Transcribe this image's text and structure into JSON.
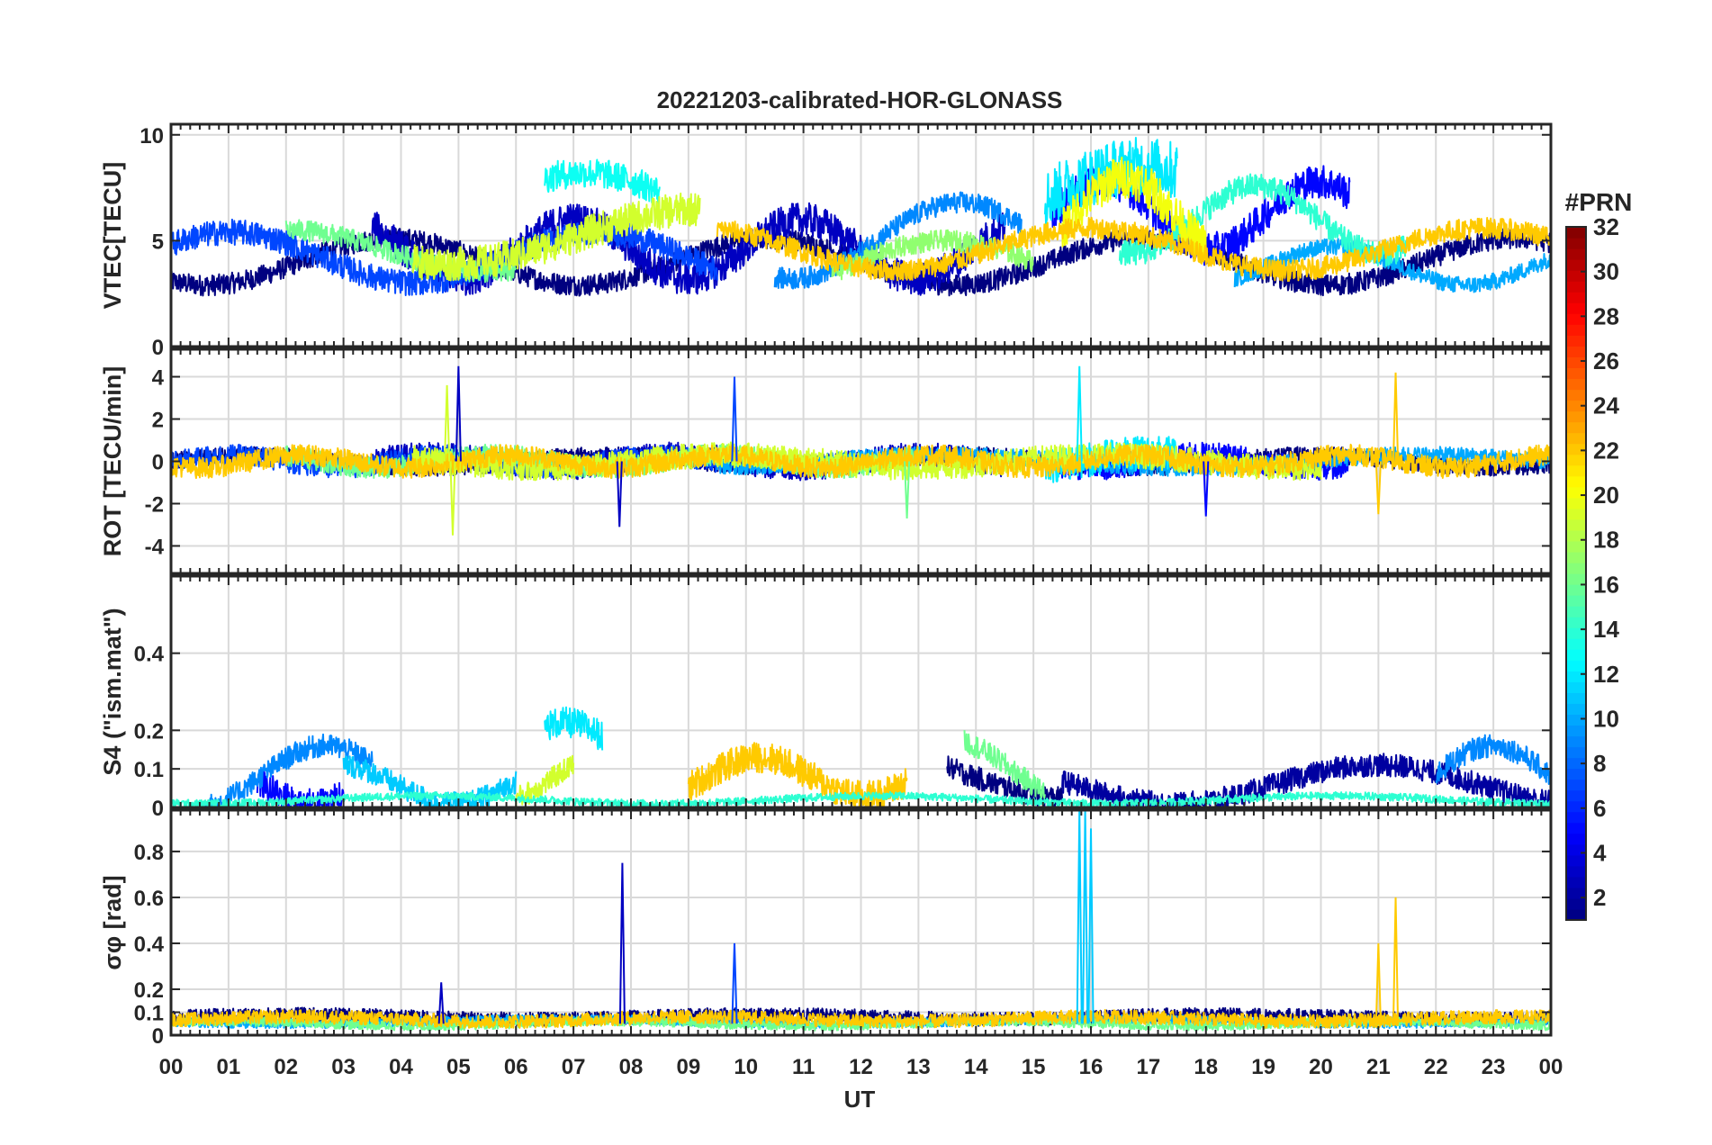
{
  "chart_data": {
    "type": "line",
    "title": "20221203-calibrated-HOR-GLONASS",
    "xlabel": "UT",
    "x_tick_labels": [
      "00",
      "01",
      "02",
      "03",
      "04",
      "05",
      "06",
      "07",
      "08",
      "09",
      "10",
      "11",
      "12",
      "13",
      "14",
      "15",
      "16",
      "17",
      "18",
      "19",
      "20",
      "21",
      "22",
      "23",
      "00"
    ],
    "xlim": [
      0,
      24
    ],
    "colorbar": {
      "label": "#PRN",
      "range": [
        1,
        32
      ],
      "tick_labels": [
        "2",
        "4",
        "6",
        "8",
        "10",
        "12",
        "14",
        "16",
        "18",
        "20",
        "22",
        "24",
        "26",
        "28",
        "30",
        "32"
      ],
      "colormap": "jet"
    },
    "panels": [
      {
        "ylabel": "VTEC[TECU]",
        "ylim": [
          0,
          10.5
        ],
        "y_ticks": [
          0,
          5,
          10
        ],
        "y_tick_labels": [
          "0",
          "5",
          "10"
        ],
        "series": [
          {
            "prn": 1,
            "x_start": 0.0,
            "x_end": 24.0,
            "base": 4.0,
            "amp": 1.1,
            "noise": 0.5
          },
          {
            "prn": 3,
            "x_start": 3.5,
            "x_end": 14.5,
            "base": 4.6,
            "amp": 1.4,
            "noise": 0.8
          },
          {
            "prn": 5,
            "x_start": 15.3,
            "x_end": 20.5,
            "base": 6.2,
            "amp": 1.6,
            "noise": 0.8
          },
          {
            "prn": 7,
            "x_start": 0.0,
            "x_end": 9.5,
            "base": 4.2,
            "amp": 1.2,
            "noise": 0.6
          },
          {
            "prn": 9,
            "x_start": 10.5,
            "x_end": 14.8,
            "base": 5.0,
            "amp": 1.8,
            "noise": 0.5
          },
          {
            "prn": 10,
            "x_start": 18.5,
            "x_end": 24.0,
            "base": 3.8,
            "amp": 0.9,
            "noise": 0.4
          },
          {
            "prn": 12,
            "x_start": 15.2,
            "x_end": 17.5,
            "base": 6.0,
            "amp": 2.5,
            "noise": 1.4
          },
          {
            "prn": 13,
            "x_start": 6.5,
            "x_end": 8.5,
            "base": 6.8,
            "amp": 1.4,
            "noise": 0.7
          },
          {
            "prn": 14,
            "x_start": 16.5,
            "x_end": 21.5,
            "base": 6.0,
            "amp": 1.6,
            "noise": 0.6
          },
          {
            "prn": 16,
            "x_start": 2.0,
            "x_end": 6.0,
            "base": 4.5,
            "amp": 1.0,
            "noise": 0.5
          },
          {
            "prn": 17,
            "x_start": 11.5,
            "x_end": 15.0,
            "base": 3.5,
            "amp": 1.5,
            "noise": 0.5
          },
          {
            "prn": 19,
            "x_start": 4.2,
            "x_end": 9.2,
            "base": 5.2,
            "amp": 1.3,
            "noise": 0.8
          },
          {
            "prn": 20,
            "x_start": 15.5,
            "x_end": 18.0,
            "base": 6.2,
            "amp": 1.8,
            "noise": 1.0
          },
          {
            "prn": 22,
            "x_start": 9.5,
            "x_end": 24.0,
            "base": 4.6,
            "amp": 1.0,
            "noise": 0.5
          }
        ]
      },
      {
        "ylabel": "ROT [TECU/min]",
        "ylim": [
          -5.3,
          5.3
        ],
        "y_ticks": [
          -4,
          -2,
          0,
          2,
          4
        ],
        "y_tick_labels": [
          "-4",
          "-2",
          "0",
          "2",
          "4"
        ],
        "series": [
          {
            "prn": 1,
            "x_start": 0.0,
            "x_end": 24.0,
            "base": 0,
            "amp": 0.3,
            "noise": 0.4
          },
          {
            "prn": 3,
            "x_start": 3.5,
            "x_end": 14.5,
            "base": 0,
            "amp": 0.3,
            "noise": 0.6
          },
          {
            "prn": 5,
            "x_start": 15.3,
            "x_end": 20.5,
            "base": 0,
            "amp": 0.3,
            "noise": 0.6
          },
          {
            "prn": 7,
            "x_start": 0.0,
            "x_end": 9.5,
            "base": 0,
            "amp": 0.3,
            "noise": 0.5
          },
          {
            "prn": 10,
            "x_start": 9.5,
            "x_end": 24.0,
            "base": 0,
            "amp": 0.3,
            "noise": 0.4
          },
          {
            "prn": 12,
            "x_start": 15.2,
            "x_end": 17.5,
            "base": 0,
            "amp": 0.4,
            "noise": 0.8
          },
          {
            "prn": 16,
            "x_start": 2.0,
            "x_end": 13.0,
            "base": 0,
            "amp": 0.3,
            "noise": 0.5
          },
          {
            "prn": 19,
            "x_start": 4.2,
            "x_end": 20.0,
            "base": 0,
            "amp": 0.3,
            "noise": 0.6
          },
          {
            "prn": 22,
            "x_start": 0.0,
            "x_end": 24.0,
            "base": 0,
            "amp": 0.3,
            "noise": 0.5
          }
        ],
        "spikes": [
          {
            "x": 4.8,
            "y": 3.6,
            "prn": 19
          },
          {
            "x": 4.9,
            "y": -3.5,
            "prn": 19
          },
          {
            "x": 5.0,
            "y": 4.5,
            "prn": 3
          },
          {
            "x": 7.8,
            "y": -3.1,
            "prn": 3
          },
          {
            "x": 9.8,
            "y": 4.0,
            "prn": 7
          },
          {
            "x": 12.8,
            "y": -2.7,
            "prn": 16
          },
          {
            "x": 15.8,
            "y": 4.5,
            "prn": 12
          },
          {
            "x": 21.3,
            "y": 4.2,
            "prn": 22
          },
          {
            "x": 21.0,
            "y": -2.5,
            "prn": 22
          },
          {
            "x": 18.0,
            "y": -2.6,
            "prn": 5
          }
        ]
      },
      {
        "ylabel": "S4 (\"ism.mat\")",
        "ylim": [
          0,
          0.6
        ],
        "y_ticks": [
          0,
          0.1,
          0.2,
          0.4
        ],
        "y_tick_labels": [
          "0",
          "0.1",
          "0.2",
          "0.4"
        ],
        "series": [
          {
            "prn": 1,
            "x_start": 13.5,
            "x_end": 15.5,
            "base": 0.1,
            "amp": 0.08,
            "noise": 0.03
          },
          {
            "prn": 2,
            "x_start": 15.5,
            "x_end": 24.0,
            "base": 0.06,
            "amp": 0.05,
            "noise": 0.03
          },
          {
            "prn": 5,
            "x_start": 1.5,
            "x_end": 3.0,
            "base": 0.07,
            "amp": 0.06,
            "noise": 0.04
          },
          {
            "prn": 9,
            "x_start": 0.5,
            "x_end": 3.5,
            "base": 0.08,
            "amp": 0.08,
            "noise": 0.03
          },
          {
            "prn": 9,
            "x_start": 22.0,
            "x_end": 24.0,
            "base": 0.08,
            "amp": 0.08,
            "noise": 0.03
          },
          {
            "prn": 11,
            "x_start": 3.0,
            "x_end": 6.0,
            "base": 0.06,
            "amp": 0.05,
            "noise": 0.03
          },
          {
            "prn": 12,
            "x_start": 6.5,
            "x_end": 7.5,
            "base": 0.1,
            "amp": 0.12,
            "noise": 0.04
          },
          {
            "prn": 16,
            "x_start": 13.8,
            "x_end": 15.2,
            "base": 0.1,
            "amp": 0.08,
            "noise": 0.03
          },
          {
            "prn": 19,
            "x_start": 6.0,
            "x_end": 7.0,
            "base": 0.08,
            "amp": 0.06,
            "noise": 0.03
          },
          {
            "prn": 22,
            "x_start": 9.0,
            "x_end": 12.8,
            "base": 0.08,
            "amp": 0.05,
            "noise": 0.04
          },
          {
            "prn": 14,
            "x_start": 0.0,
            "x_end": 24.0,
            "base": 0.02,
            "amp": 0.01,
            "noise": 0.01
          }
        ]
      },
      {
        "ylabel": "σφ [rad]",
        "ylim": [
          0,
          0.98
        ],
        "y_ticks": [
          0,
          0.1,
          0.2,
          0.4,
          0.6,
          0.8
        ],
        "y_tick_labels": [
          "0",
          "0.1",
          "0.2",
          "0.4",
          "0.6",
          "0.8"
        ],
        "series": [
          {
            "prn": 1,
            "x_start": 0.0,
            "x_end": 24.0,
            "base": 0.08,
            "amp": 0.01,
            "noise": 0.03
          },
          {
            "prn": 10,
            "x_start": 0.0,
            "x_end": 24.0,
            "base": 0.06,
            "amp": 0.01,
            "noise": 0.02
          },
          {
            "prn": 16,
            "x_start": 0.0,
            "x_end": 24.0,
            "base": 0.05,
            "amp": 0.01,
            "noise": 0.02
          },
          {
            "prn": 22,
            "x_start": 0.0,
            "x_end": 24.0,
            "base": 0.07,
            "amp": 0.01,
            "noise": 0.03
          }
        ],
        "spikes": [
          {
            "x": 7.85,
            "y": 0.75,
            "prn": 3
          },
          {
            "x": 9.8,
            "y": 0.4,
            "prn": 7
          },
          {
            "x": 15.8,
            "y": 0.98,
            "prn": 11
          },
          {
            "x": 15.9,
            "y": 0.98,
            "prn": 11
          },
          {
            "x": 16.0,
            "y": 0.9,
            "prn": 11
          },
          {
            "x": 21.0,
            "y": 0.4,
            "prn": 22
          },
          {
            "x": 21.3,
            "y": 0.6,
            "prn": 22
          },
          {
            "x": 4.7,
            "y": 0.23,
            "prn": 3
          }
        ]
      }
    ]
  }
}
